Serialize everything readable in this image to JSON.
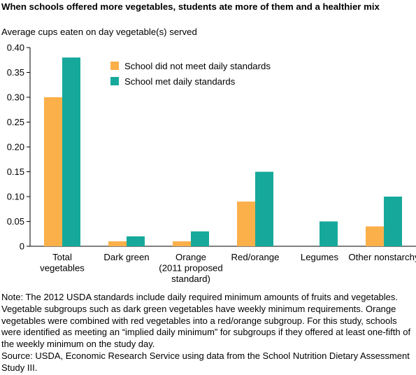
{
  "title": "When schools offered more vegetables, students ate more of them and a healthier mix",
  "ylabel": "Average cups eaten on day vegetable(s) served",
  "note": "Note: The 2012 USDA standards include daily required minimum amounts of fruits and vegetables. Vegetable subgroups such as dark green vegetables have weekly minimum requirements. Orange vegetables were combined with red vegetables into a red/orange subgroup. For this study, schools were identified as meeting an “implied daily minimum” for subgroups if they offered at least one-fifth of the weekly minimum on the study day.",
  "source": "Source: USDA, Economic Research Service using data from the School Nutrition Dietary Assessment Study III.",
  "colors": {
    "not_met": "#fbb04a",
    "met": "#16a99b"
  },
  "chart_data": {
    "type": "bar",
    "title": "When schools offered more vegetables, students ate more of them and a healthier mix",
    "ylabel": "Average cups eaten on day vegetable(s) served",
    "xlabel": "",
    "ylim": [
      0,
      0.4
    ],
    "yticks": [
      "0",
      "0.05",
      "0.10",
      "0.15",
      "0.20",
      "0.25",
      "0.30",
      "0.35",
      "0.40"
    ],
    "grid": false,
    "legend": "top-center",
    "categories": [
      [
        "Total",
        "vegetables"
      ],
      [
        "Dark green"
      ],
      [
        "Orange",
        "(2011 proposed",
        "standard)"
      ],
      [
        "Red/orange"
      ],
      [
        "Legumes"
      ],
      [
        "Other nonstarchy"
      ]
    ],
    "series": [
      {
        "name": "School did not meet daily standards",
        "color": "#fbb04a",
        "values": [
          0.3,
          0.01,
          0.01,
          0.09,
          null,
          0.04
        ]
      },
      {
        "name": "School met daily standards",
        "color": "#16a99b",
        "values": [
          0.38,
          0.02,
          0.03,
          0.15,
          0.05,
          0.1
        ]
      }
    ]
  }
}
